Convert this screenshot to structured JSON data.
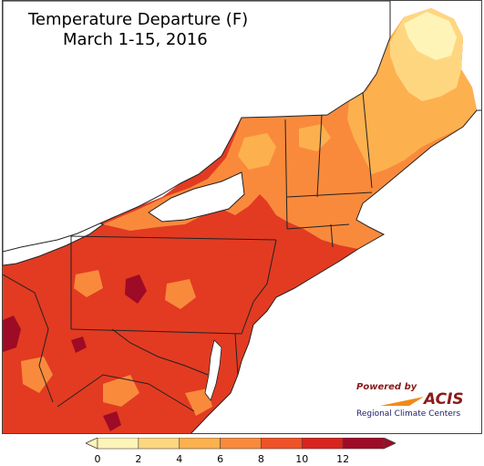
{
  "title": "Temperature Departure (F)",
  "subtitle": "March 1-15, 2016",
  "logo": {
    "powered_by": "Powered by",
    "name": "ACIS",
    "tagline": "Regional Climate Centers"
  },
  "legend": {
    "ticks": [
      "0",
      "2",
      "4",
      "6",
      "8",
      "10",
      "12"
    ],
    "colors": [
      "#fff4b8",
      "#ffd680",
      "#fdb04e",
      "#f98a3c",
      "#ee5226",
      "#d9231e",
      "#9e0b26"
    ]
  },
  "colors": {
    "water": "#ffffff",
    "border": "#222222",
    "county": "#b8552f"
  }
}
